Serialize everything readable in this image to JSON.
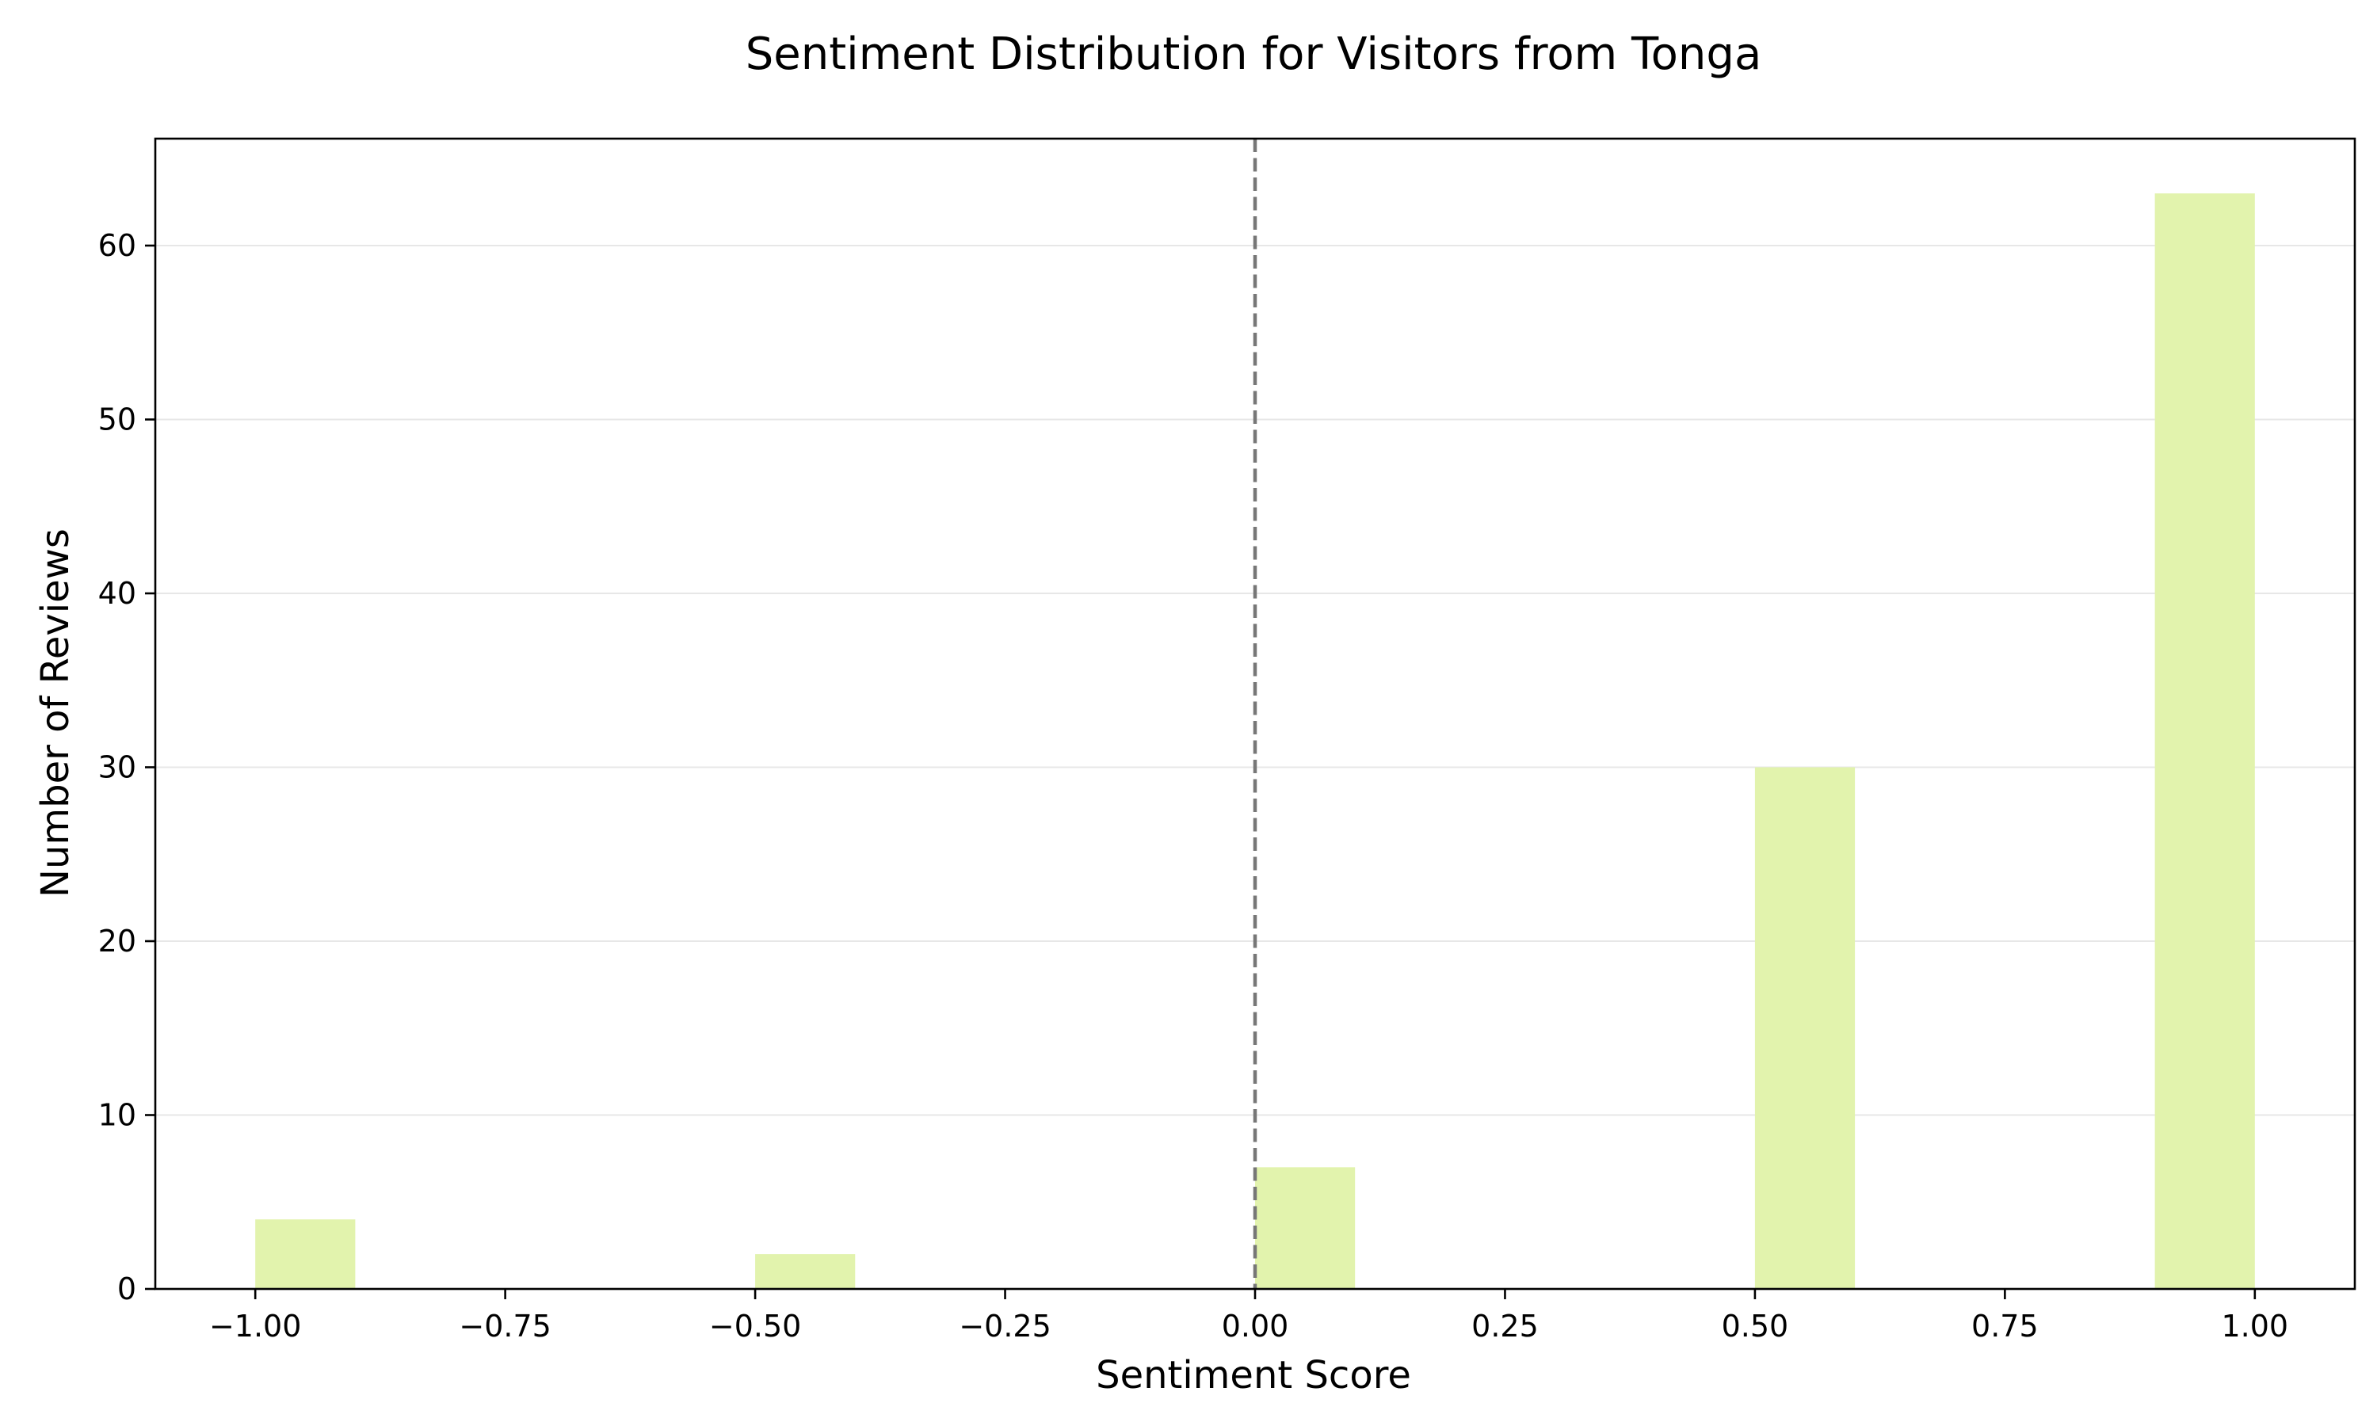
{
  "chart_data": {
    "type": "bar",
    "title": "Sentiment Distribution for Visitors from Tonga",
    "xlabel": "Sentiment Score",
    "ylabel": "Number of Reviews",
    "xlim": [
      -1.1,
      1.1
    ],
    "ylim": [
      0,
      66.15
    ],
    "bin_width": 0.1,
    "bins": [
      {
        "x0": -1.0,
        "x1": -0.9,
        "count": 4
      },
      {
        "x0": -0.5,
        "x1": -0.4,
        "count": 2
      },
      {
        "x0": 0.0,
        "x1": 0.1,
        "count": 7
      },
      {
        "x0": 0.5,
        "x1": 0.6,
        "count": 30
      },
      {
        "x0": 0.9,
        "x1": 1.0,
        "count": 63
      }
    ],
    "reference_line": {
      "x": 0.0,
      "style": "dashed",
      "color": "#777777"
    },
    "bar_color": "#e2f3ad",
    "grid": {
      "axis": "y",
      "on": true
    },
    "x_ticks": [
      {
        "value": -1.0,
        "label": "−1.00"
      },
      {
        "value": -0.75,
        "label": "−0.75"
      },
      {
        "value": -0.5,
        "label": "−0.50"
      },
      {
        "value": -0.25,
        "label": "−0.25"
      },
      {
        "value": 0.0,
        "label": "0.00"
      },
      {
        "value": 0.25,
        "label": "0.25"
      },
      {
        "value": 0.5,
        "label": "0.50"
      },
      {
        "value": 0.75,
        "label": "0.75"
      },
      {
        "value": 1.0,
        "label": "1.00"
      }
    ],
    "y_ticks": [
      {
        "value": 0,
        "label": "0"
      },
      {
        "value": 10,
        "label": "10"
      },
      {
        "value": 20,
        "label": "20"
      },
      {
        "value": 30,
        "label": "30"
      },
      {
        "value": 40,
        "label": "40"
      },
      {
        "value": 50,
        "label": "50"
      },
      {
        "value": 60,
        "label": "60"
      }
    ]
  }
}
